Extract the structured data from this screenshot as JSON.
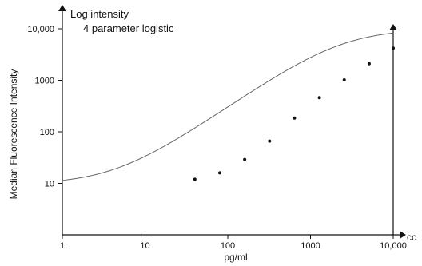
{
  "chart_data": {
    "type": "scatter",
    "title": "Log intensity",
    "annotation": "4 parameter logistic",
    "xlabel": "pg/ml",
    "ylabel": "Median Fluorescence Intensity",
    "x_axis_end_label": "cc",
    "x_scale": "log",
    "y_scale": "log",
    "xlim": [
      1,
      10000
    ],
    "ylim": [
      1,
      10000
    ],
    "x_ticks": [
      1,
      10,
      100,
      1000,
      10000
    ],
    "x_tick_labels": [
      "1",
      "10",
      "100",
      "1000",
      "10,000"
    ],
    "y_ticks": [
      10,
      100,
      1000,
      10000
    ],
    "y_tick_labels": [
      "10",
      "100",
      "1000",
      "10,000"
    ],
    "grid": false,
    "series": [
      {
        "x": [
          40,
          80,
          160,
          320,
          640,
          1280,
          2560,
          5120,
          10000
        ],
        "y": [
          12,
          16,
          29,
          66,
          185,
          460,
          1020,
          2100,
          4200
        ]
      }
    ],
    "fit": {
      "model": "4 parameter logistic",
      "bottom": 9.5,
      "top": 10000,
      "ec50": 2400,
      "hill": 1.1,
      "x_range": [
        1,
        10000
      ]
    }
  }
}
